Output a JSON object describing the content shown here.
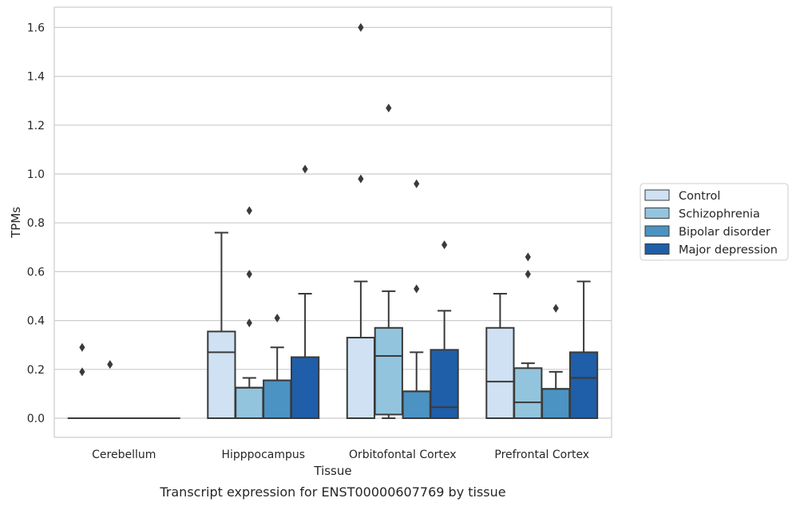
{
  "chart_data": {
    "type": "box",
    "xlabel": "Tissue",
    "ylabel": "TPMs",
    "caption": "Transcript expression for ENST00000607769 by tissue",
    "ylim": [
      -0.08,
      1.68
    ],
    "yticks": [
      "0.0",
      "0.2",
      "0.4",
      "0.6",
      "0.8",
      "1.0",
      "1.2",
      "1.4",
      "1.6"
    ],
    "grid": "horizontal",
    "legend_position": "right",
    "categories": [
      "Cerebellum",
      "Hipppocampus",
      "Orbitofontal Cortex",
      "Prefrontal Cortex"
    ],
    "series": [
      {
        "name": "Control",
        "color": "#cfe1f2",
        "boxes": [
          {
            "q1": 0,
            "median": 0,
            "q3": 0,
            "whislo": 0,
            "whishi": 0,
            "fliers": [
              0.29,
              0.19
            ]
          },
          {
            "q1": 0,
            "median": 0.27,
            "q3": 0.355,
            "whislo": 0,
            "whishi": 0.76,
            "fliers": []
          },
          {
            "q1": 0,
            "median": 0,
            "q3": 0.33,
            "whislo": 0,
            "whishi": 0.56,
            "fliers": [
              1.6,
              0.98
            ]
          },
          {
            "q1": 0,
            "median": 0.15,
            "q3": 0.37,
            "whislo": 0,
            "whishi": 0.51,
            "fliers": []
          }
        ]
      },
      {
        "name": "Schizophrenia",
        "color": "#93c4de",
        "boxes": [
          {
            "q1": 0,
            "median": 0,
            "q3": 0,
            "whislo": 0,
            "whishi": 0,
            "fliers": [
              0.22
            ]
          },
          {
            "q1": 0,
            "median": 0.125,
            "q3": 0.125,
            "whislo": 0,
            "whishi": 0.165,
            "fliers": [
              0.85,
              0.59,
              0.39
            ]
          },
          {
            "q1": 0.015,
            "median": 0.255,
            "q3": 0.37,
            "whislo": 0,
            "whishi": 0.52,
            "fliers": [
              1.27
            ]
          },
          {
            "q1": 0,
            "median": 0.065,
            "q3": 0.205,
            "whislo": 0,
            "whishi": 0.225,
            "fliers": [
              0.66,
              0.59
            ]
          }
        ]
      },
      {
        "name": "Bipolar disorder",
        "color": "#4b93c3",
        "boxes": [
          {
            "q1": 0,
            "median": 0,
            "q3": 0,
            "whislo": 0,
            "whishi": 0,
            "fliers": []
          },
          {
            "q1": 0,
            "median": 0.155,
            "q3": 0.155,
            "whislo": 0,
            "whishi": 0.29,
            "fliers": [
              0.41
            ]
          },
          {
            "q1": 0,
            "median": 0.11,
            "q3": 0.11,
            "whislo": 0,
            "whishi": 0.27,
            "fliers": [
              0.96,
              0.53
            ]
          },
          {
            "q1": 0,
            "median": 0.12,
            "q3": 0.12,
            "whislo": 0,
            "whishi": 0.19,
            "fliers": [
              0.45
            ]
          }
        ]
      },
      {
        "name": "Major depression",
        "color": "#1f5ea8",
        "boxes": [
          {
            "q1": 0,
            "median": 0,
            "q3": 0,
            "whislo": 0,
            "whishi": 0,
            "fliers": []
          },
          {
            "q1": 0,
            "median": 0.25,
            "q3": 0.25,
            "whislo": 0,
            "whishi": 0.51,
            "fliers": [
              1.02
            ]
          },
          {
            "q1": 0,
            "median": 0.045,
            "q3": 0.28,
            "whislo": 0,
            "whishi": 0.44,
            "fliers": [
              0.71
            ]
          },
          {
            "q1": 0,
            "median": 0.165,
            "q3": 0.27,
            "whislo": 0,
            "whishi": 0.56,
            "fliers": []
          }
        ]
      }
    ]
  }
}
